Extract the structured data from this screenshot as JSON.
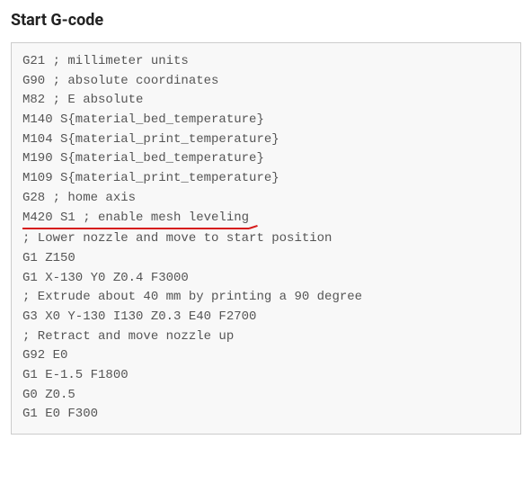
{
  "heading": "Start G-code",
  "code": {
    "lines": [
      "G21 ; millimeter units",
      "G90 ; absolute coordinates",
      "M82 ; E absolute",
      "M140 S{material_bed_temperature}",
      "M104 S{material_print_temperature}",
      "M190 S{material_bed_temperature}",
      "M109 S{material_print_temperature}",
      "G28 ; home axis",
      "M420 S1 ; enable mesh leveling",
      "; Lower nozzle and move to start position",
      "G1 Z150",
      "G1 X-130 Y0 Z0.4 F3000",
      "; Extrude about 40 mm by printing a 90 degree",
      "G3 X0 Y-130 I130 Z0.3 E40 F2700",
      "; Retract and move nozzle up",
      "G92 E0",
      "G1 E-1.5 F1800",
      "G0 Z0.5",
      "G1 E0 F300"
    ],
    "highlighted_index": 8
  },
  "style": {
    "heading_color": "#222222",
    "code_background": "#f8f8f8",
    "code_border": "#cccccc",
    "code_text_color": "#555555",
    "underline_color": "#d61a1a",
    "font_family_code": "Courier New",
    "font_size_heading": 18,
    "font_size_code": 14
  }
}
